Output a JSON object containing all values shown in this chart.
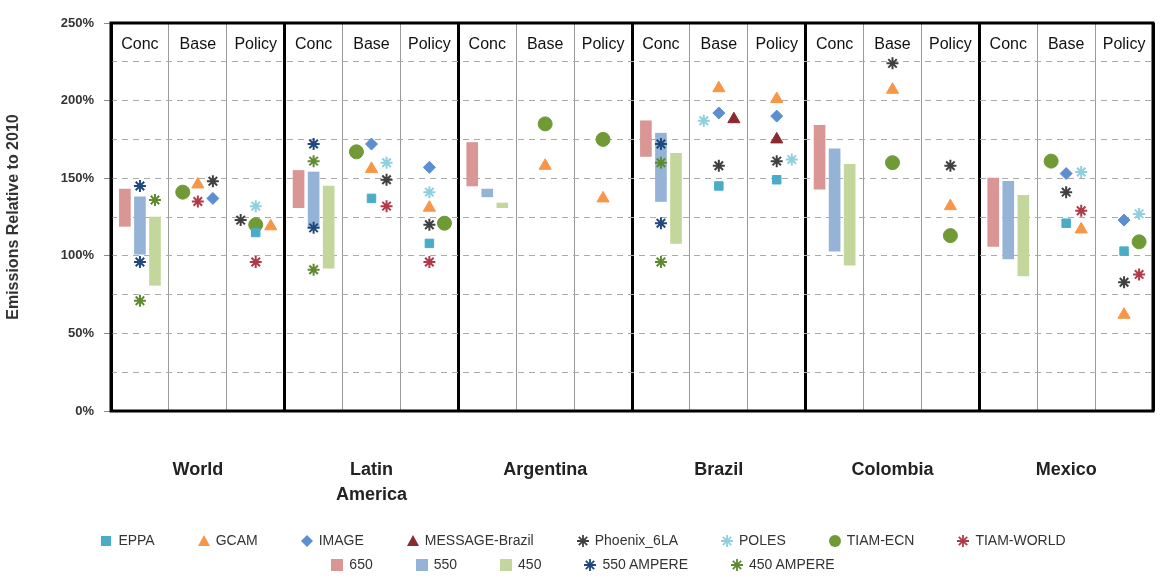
{
  "chart_data": {
    "type": "scatter",
    "categories": [
      "Conc",
      "Base",
      "Policy",
      "Conc",
      "Base",
      "Policy",
      "Conc",
      "Base",
      "Policy",
      "Conc",
      "Base",
      "Policy",
      "Conc",
      "Base",
      "Policy",
      "Conc",
      "Base",
      "Policy"
    ],
    "annotations": [
      "World",
      "Latin America",
      "Argentina",
      "Brazil",
      "Colombia",
      "Mexico"
    ],
    "ylabel": "Emissions Relative to 2010",
    "ylim": [
      0,
      250
    ],
    "yticks": [
      {
        "value": 0,
        "label": "0%"
      },
      {
        "value": 25,
        "label": null
      },
      {
        "value": 50,
        "label": "50%"
      },
      {
        "value": 75,
        "label": null
      },
      {
        "value": 100,
        "label": "100%"
      },
      {
        "value": 125,
        "label": null
      },
      {
        "value": 150,
        "label": "150%"
      },
      {
        "value": 175,
        "label": null
      },
      {
        "value": 200,
        "label": "200%"
      },
      {
        "value": 225,
        "label": null
      },
      {
        "value": 250,
        "label": "250%"
      }
    ],
    "grid": true,
    "legend": "bottom",
    "series": [
      {
        "name": "EPPA",
        "color": "#4bacc6",
        "marker": "square",
        "values": [
          null,
          null,
          115,
          null,
          137,
          108,
          null,
          null,
          null,
          null,
          145,
          149,
          null,
          null,
          null,
          null,
          121,
          103
        ]
      },
      {
        "name": "GCAM",
        "color": "#f79646",
        "marker": "triangle",
        "values": [
          null,
          146,
          119,
          null,
          156,
          131,
          null,
          158,
          137,
          null,
          208,
          201,
          null,
          207,
          132,
          null,
          117,
          62
        ]
      },
      {
        "name": "IMAGE",
        "color": "#5b8fd0",
        "marker": "diamond",
        "values": [
          null,
          137,
          null,
          null,
          172,
          157,
          null,
          null,
          null,
          null,
          192,
          190,
          null,
          null,
          null,
          null,
          153,
          123
        ]
      },
      {
        "name": "MESSAGE-Brazil",
        "color": "#8b2a2e",
        "marker": "triangle",
        "values": [
          null,
          null,
          null,
          null,
          null,
          null,
          null,
          null,
          null,
          null,
          188,
          175,
          null,
          null,
          null,
          null,
          null,
          null
        ]
      },
      {
        "name": "Phoenix_6LA",
        "color": "#404040",
        "marker": "cross",
        "values": [
          null,
          148,
          123,
          null,
          149,
          120,
          null,
          null,
          null,
          null,
          158,
          161,
          null,
          224,
          158,
          null,
          141,
          83
        ]
      },
      {
        "name": "POLES",
        "color": "#8ecfe0",
        "marker": "cross",
        "values": [
          null,
          null,
          132,
          null,
          160,
          141,
          null,
          null,
          null,
          null,
          187,
          162,
          null,
          null,
          null,
          null,
          154,
          127
        ]
      },
      {
        "name": "TIAM-ECN",
        "color": "#6f9a36",
        "marker": "circle",
        "values": [
          null,
          141,
          120,
          null,
          167,
          121,
          null,
          185,
          175,
          null,
          null,
          null,
          null,
          160,
          113,
          null,
          161,
          109
        ]
      },
      {
        "name": "TIAM-WORLD",
        "color": "#b23a48",
        "marker": "cross",
        "values": [
          null,
          135,
          96,
          null,
          132,
          96,
          null,
          null,
          null,
          null,
          null,
          null,
          null,
          null,
          null,
          null,
          129,
          88
        ]
      },
      {
        "name": "650",
        "type": "bar",
        "color": "#d99694",
        "base": [
          119,
          null,
          null,
          131,
          null,
          null,
          145,
          null,
          null,
          164,
          null,
          null,
          143,
          null,
          null,
          106,
          null,
          null
        ],
        "values": [
          24,
          null,
          null,
          24,
          null,
          null,
          28,
          null,
          null,
          23,
          null,
          null,
          41,
          null,
          null,
          44,
          null,
          null
        ]
      },
      {
        "name": "550",
        "type": "bar",
        "color": "#95b3d7",
        "base": [
          101,
          null,
          null,
          118,
          null,
          null,
          138,
          null,
          null,
          135,
          null,
          null,
          103,
          null,
          null,
          98,
          null,
          null
        ],
        "values": [
          37,
          null,
          null,
          36,
          null,
          null,
          5,
          null,
          null,
          44,
          null,
          null,
          66,
          null,
          null,
          50,
          null,
          null
        ]
      },
      {
        "name": "450",
        "type": "bar",
        "color": "#c3d69b",
        "base": [
          81,
          null,
          null,
          92,
          null,
          null,
          131,
          null,
          null,
          108,
          null,
          null,
          94,
          null,
          null,
          87,
          null,
          null
        ],
        "values": [
          44,
          null,
          null,
          53,
          null,
          null,
          3,
          null,
          null,
          58,
          null,
          null,
          65,
          null,
          null,
          52,
          null,
          null
        ]
      },
      {
        "name": "550 AMPERE",
        "color": "#1f497d",
        "marker": "cross",
        "values": [
          145,
          null,
          null,
          172,
          null,
          null,
          null,
          null,
          null,
          172,
          null,
          null,
          null,
          null,
          null,
          null,
          null,
          null
        ]
      },
      {
        "name": "450 AMPERE",
        "color": "#5f8b2f",
        "marker": "cross",
        "values": [
          136,
          null,
          null,
          161,
          null,
          null,
          null,
          null,
          null,
          160,
          null,
          null,
          null,
          null,
          null,
          null,
          null,
          null
        ]
      },
      {
        "color": "#1f497d",
        "marker": "cross",
        "values": [
          96,
          null,
          null,
          118,
          null,
          null,
          null,
          null,
          null,
          121,
          null,
          null,
          null,
          null,
          null,
          null,
          null,
          null
        ]
      },
      {
        "color": "#5f8b2f",
        "marker": "cross",
        "values": [
          71,
          null,
          null,
          91,
          null,
          null,
          null,
          null,
          null,
          96,
          null,
          null,
          null,
          null,
          null,
          null,
          null,
          null
        ]
      }
    ]
  }
}
